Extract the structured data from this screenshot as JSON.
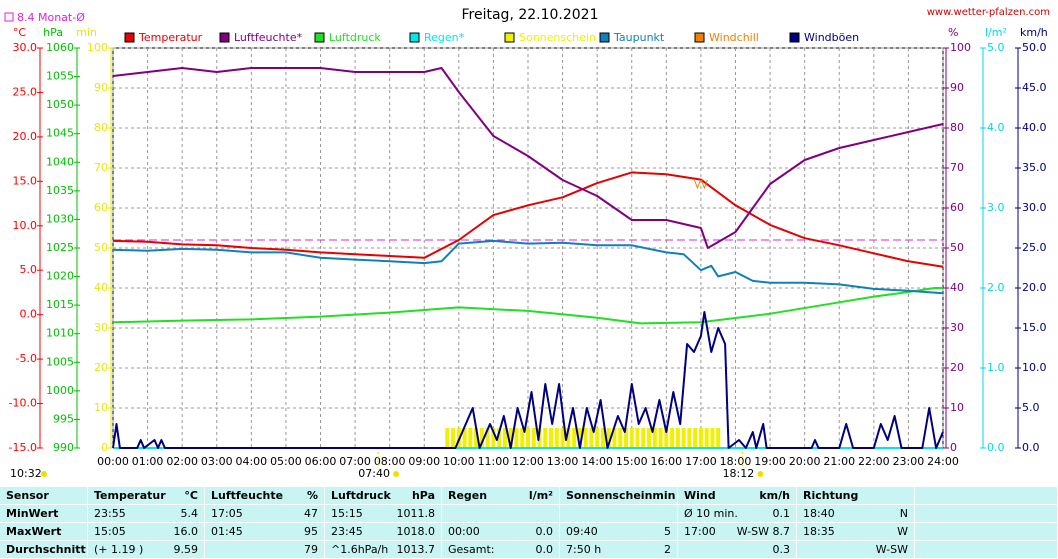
{
  "chart_data": {
    "type": "line",
    "title": "Freitag, 22.10.2021",
    "source": "www.wetter-pfalzen.com",
    "current_time": "10:32",
    "sunrise": {
      "value": 460,
      "label": "07:40"
    },
    "sunset": {
      "value": 1092,
      "label": "18:12"
    },
    "monthly_avg": {
      "value": 8.4,
      "label": "8.4 Monat-Ø",
      "color": "#e020e0",
      "axis": "c"
    },
    "grid": true,
    "xlim": [
      0,
      1440
    ],
    "xticks": [
      {
        "value": 0,
        "label": "00:00"
      },
      {
        "value": 60,
        "label": "01:00"
      },
      {
        "value": 120,
        "label": "02:00"
      },
      {
        "value": 180,
        "label": "03:00"
      },
      {
        "value": 240,
        "label": "04:00"
      },
      {
        "value": 300,
        "label": "05:00"
      },
      {
        "value": 360,
        "label": "06:00"
      },
      {
        "value": 420,
        "label": "07:00"
      },
      {
        "value": 480,
        "label": "08:00"
      },
      {
        "value": 540,
        "label": "09:00"
      },
      {
        "value": 600,
        "label": "10:00"
      },
      {
        "value": 660,
        "label": "11:00"
      },
      {
        "value": 720,
        "label": "12:00"
      },
      {
        "value": 780,
        "label": "13:00"
      },
      {
        "value": 840,
        "label": "14:00"
      },
      {
        "value": 900,
        "label": "15:00"
      },
      {
        "value": 960,
        "label": "16:00"
      },
      {
        "value": 1020,
        "label": "17:00"
      },
      {
        "value": 1080,
        "label": "18:00"
      },
      {
        "value": 1140,
        "label": "19:00"
      },
      {
        "value": 1200,
        "label": "20:00"
      },
      {
        "value": 1260,
        "label": "21:00"
      },
      {
        "value": 1320,
        "label": "22:00"
      },
      {
        "value": 1380,
        "label": "23:00"
      },
      {
        "value": 1440,
        "label": "24:00"
      }
    ],
    "axes": {
      "c": {
        "unit": "°C",
        "color": "#ff0000",
        "side": "left",
        "pos": 40,
        "lim": [
          -15,
          30
        ],
        "ticks": [
          {
            "value": -15,
            "label": "-15.0"
          },
          {
            "value": -10,
            "label": "-10.0"
          },
          {
            "value": -5,
            "label": "-5.0"
          },
          {
            "value": 0,
            "label": "0.0"
          },
          {
            "value": 5,
            "label": "5.0"
          },
          {
            "value": 10,
            "label": "10.0"
          },
          {
            "value": 15,
            "label": "15.0"
          },
          {
            "value": 20,
            "label": "20.0"
          },
          {
            "value": 25,
            "label": "25.0"
          },
          {
            "value": 30,
            "label": "30.0"
          }
        ]
      },
      "hpa": {
        "unit": "hPa",
        "color": "#00c000",
        "side": "left",
        "pos": 77,
        "lim": [
          990,
          1060
        ],
        "ticks": [
          990,
          995,
          1000,
          1005,
          1010,
          1015,
          1020,
          1025,
          1030,
          1035,
          1040,
          1045,
          1050,
          1055,
          1060
        ]
      },
      "min": {
        "unit": "min",
        "color": "#e8e800",
        "side": "left",
        "pos": 111,
        "lim": [
          0,
          100
        ],
        "ticks": [
          0,
          10,
          20,
          30,
          40,
          50,
          60,
          70,
          80,
          90,
          100
        ]
      },
      "pct": {
        "unit": "%",
        "color": "#800080",
        "side": "right",
        "pos": 946,
        "lim": [
          0,
          100
        ],
        "ticks": [
          0,
          10,
          20,
          30,
          40,
          50,
          60,
          70,
          80,
          90,
          100
        ]
      },
      "rain": {
        "unit": "l/m²",
        "color": "#00d8e8",
        "side": "right",
        "pos": 983,
        "lim": [
          0,
          5
        ],
        "ticks": [
          {
            "value": 0,
            "label": "0.0"
          },
          {
            "value": 1,
            "label": "1.0"
          },
          {
            "value": 2,
            "label": "2.0"
          },
          {
            "value": 3,
            "label": "3.0"
          },
          {
            "value": 4,
            "label": "4.0"
          },
          {
            "value": 5,
            "label": "5.0"
          }
        ]
      },
      "kmh": {
        "unit": "km/h",
        "color": "#000080",
        "side": "right",
        "pos": 1018,
        "lim": [
          0,
          50
        ],
        "ticks": [
          {
            "value": 0,
            "label": "0.0"
          },
          {
            "value": 5,
            "label": "5.0"
          },
          {
            "value": 10,
            "label": "10.0"
          },
          {
            "value": 15,
            "label": "15.0"
          },
          {
            "value": 20,
            "label": "20.0"
          },
          {
            "value": 25,
            "label": "25.0"
          },
          {
            "value": 30,
            "label": "30.0"
          },
          {
            "value": 35,
            "label": "35.0"
          },
          {
            "value": 40,
            "label": "40.0"
          },
          {
            "value": 45,
            "label": "45.0"
          },
          {
            "value": 50,
            "label": "50.0"
          }
        ]
      }
    },
    "series": [
      {
        "name": "Temperatur",
        "color": "#e80000",
        "axis": "c",
        "kind": "line",
        "x": [
          0,
          60,
          120,
          180,
          240,
          300,
          360,
          420,
          480,
          540,
          600,
          660,
          720,
          780,
          840,
          900,
          960,
          1020,
          1080,
          1140,
          1200,
          1260,
          1320,
          1380,
          1440
        ],
        "values": [
          8.3,
          8.2,
          7.9,
          7.8,
          7.5,
          7.3,
          7.0,
          6.8,
          6.6,
          6.4,
          8.4,
          11.2,
          12.3,
          13.2,
          14.8,
          16.0,
          15.8,
          15.2,
          12.3,
          10.1,
          8.6,
          7.8,
          6.9,
          6.0,
          5.4
        ]
      },
      {
        "name": "Luftfeuchte*",
        "color": "#800080",
        "axis": "pct",
        "kind": "line",
        "x": [
          0,
          60,
          120,
          180,
          240,
          300,
          360,
          420,
          480,
          540,
          570,
          600,
          660,
          720,
          780,
          840,
          900,
          960,
          1020,
          1032,
          1080,
          1110,
          1140,
          1200,
          1260,
          1320,
          1380,
          1440
        ],
        "values": [
          93,
          94,
          95,
          94,
          95,
          95,
          95,
          94,
          94,
          94,
          95,
          89,
          78,
          73,
          67,
          63,
          57,
          57,
          55,
          50,
          54,
          60,
          66,
          72,
          75,
          77,
          79,
          81
        ]
      },
      {
        "name": "Luftdruck",
        "color": "#20e020",
        "axis": "hpa",
        "kind": "line",
        "x": [
          0,
          120,
          240,
          360,
          480,
          600,
          720,
          840,
          915,
          1020,
          1140,
          1260,
          1320,
          1380,
          1425,
          1440
        ],
        "values": [
          1012,
          1012.3,
          1012.5,
          1013,
          1013.7,
          1014.6,
          1014,
          1012.8,
          1011.8,
          1012,
          1013.5,
          1015.5,
          1016.5,
          1017.3,
          1018,
          1018
        ]
      },
      {
        "name": "Regen*",
        "color": "#00e8e8",
        "axis": "rain",
        "kind": "line",
        "x": [
          0,
          1440
        ],
        "values": [
          0,
          0
        ]
      },
      {
        "name": "Sonnenschein",
        "color": "#f0f000",
        "axis": "min",
        "kind": "bar",
        "x": [
          580,
          590,
          600,
          610,
          620,
          630,
          640,
          650,
          660,
          670,
          680,
          690,
          700,
          710,
          720,
          730,
          740,
          750,
          760,
          770,
          780,
          790,
          800,
          810,
          820,
          830,
          840,
          850,
          860,
          870,
          880,
          890,
          900,
          910,
          920,
          930,
          940,
          950,
          960,
          970,
          980,
          990,
          1000,
          1010,
          1020,
          1030,
          1040,
          1050
        ],
        "values": [
          5,
          5,
          5,
          5,
          5,
          5,
          5,
          5,
          5,
          5,
          5,
          5,
          5,
          5,
          5,
          5,
          5,
          5,
          5,
          5,
          5,
          5,
          5,
          5,
          5,
          5,
          5,
          5,
          5,
          5,
          5,
          5,
          5,
          5,
          5,
          5,
          5,
          5,
          5,
          5,
          5,
          5,
          5,
          5,
          5,
          5,
          5,
          5
        ]
      },
      {
        "name": "Taupunkt",
        "color": "#1080b8",
        "axis": "c",
        "kind": "line",
        "x": [
          0,
          60,
          120,
          180,
          240,
          300,
          360,
          420,
          480,
          540,
          570,
          600,
          660,
          720,
          780,
          840,
          900,
          960,
          990,
          1020,
          1038,
          1050,
          1080,
          1110,
          1140,
          1200,
          1260,
          1320,
          1380,
          1440
        ],
        "values": [
          7.3,
          7.2,
          7.4,
          7.3,
          7.0,
          7.0,
          6.4,
          6.2,
          6.0,
          5.8,
          6.0,
          8.0,
          8.3,
          8.0,
          8.1,
          7.8,
          7.8,
          7.0,
          6.8,
          5.0,
          5.5,
          4.3,
          4.8,
          3.8,
          3.6,
          3.6,
          3.4,
          2.9,
          2.7,
          2.4
        ]
      },
      {
        "name": "Windchill",
        "color": "#f08000",
        "axis": "c",
        "kind": "marker",
        "x": [
          1014,
          1026
        ],
        "values": [
          14.7,
          14.7
        ]
      },
      {
        "name": "Windböen",
        "color": "#000080",
        "axis": "kmh",
        "kind": "line",
        "x": [
          0,
          6,
          12,
          42,
          48,
          54,
          72,
          78,
          84,
          90,
          594,
          624,
          636,
          654,
          666,
          678,
          690,
          702,
          714,
          726,
          738,
          750,
          762,
          774,
          786,
          798,
          810,
          822,
          834,
          846,
          858,
          876,
          888,
          900,
          912,
          924,
          936,
          948,
          960,
          972,
          984,
          996,
          1008,
          1020,
          1026,
          1038,
          1050,
          1062,
          1068,
          1086,
          1098,
          1110,
          1116,
          1128,
          1134,
          1212,
          1218,
          1224,
          1260,
          1272,
          1284,
          1320,
          1332,
          1344,
          1356,
          1368,
          1404,
          1416,
          1428,
          1440
        ],
        "values": [
          0,
          3,
          0,
          0,
          1,
          0,
          1,
          0,
          1,
          0,
          0,
          5,
          0,
          3,
          1,
          4,
          0,
          5,
          2,
          7,
          1,
          8,
          3,
          8,
          1,
          5,
          0,
          5,
          2,
          6,
          0,
          4,
          2,
          8,
          3,
          5,
          2,
          6,
          2,
          7,
          3,
          13,
          12,
          14,
          17,
          12,
          15,
          13,
          0,
          1,
          0,
          2,
          0,
          3,
          0,
          0,
          1,
          0,
          0,
          3,
          0,
          0,
          3,
          1,
          4,
          0,
          0,
          5,
          0,
          2
        ]
      }
    ]
  },
  "table": {
    "header": [
      "Sensor",
      {
        "l": "Temperatur",
        "r": "°C"
      },
      {
        "l": "Luftfeuchte",
        "r": "%"
      },
      {
        "l": "Luftdruck",
        "r": "hPa"
      },
      {
        "l": "Regen",
        "r": "l/m²"
      },
      {
        "l": "Sonnenschein",
        "r": "min"
      },
      {
        "l": "Wind",
        "r": "km/h"
      },
      {
        "l": "Richtung"
      }
    ],
    "rows": [
      [
        "MinWert",
        {
          "l": "23:55",
          "r": "5.4"
        },
        {
          "l": "17:05",
          "r": "47"
        },
        {
          "l": "15:15",
          "r": "1011.8"
        },
        {},
        {},
        {
          "l": "Ø 10 min.",
          "r": "0.1"
        },
        {
          "l": "18:40",
          "r": "N"
        }
      ],
      [
        "MaxWert",
        {
          "l": "15:05",
          "r": "16.0"
        },
        {
          "l": "01:45",
          "r": "95"
        },
        {
          "l": "23:45",
          "r": "1018.0"
        },
        {
          "l": "00:00",
          "r": "0.0"
        },
        {
          "l": "09:40",
          "r": "5"
        },
        {
          "l": "17:00",
          "r": "W-SW 8.7"
        },
        {
          "l": "18:35",
          "r": "W"
        }
      ],
      [
        "Durchschnitt",
        {
          "l": "(+ 1.19 )",
          "r": "9.59"
        },
        {
          "r": "79"
        },
        {
          "l": "^1.6hPa/h",
          "r": "1013.7"
        },
        {
          "l": "Gesamt:",
          "r": "0.0"
        },
        {
          "l": "7:50 h",
          "r": "2"
        },
        {
          "r": "0.3"
        },
        {
          "r": "W-SW"
        }
      ]
    ]
  }
}
